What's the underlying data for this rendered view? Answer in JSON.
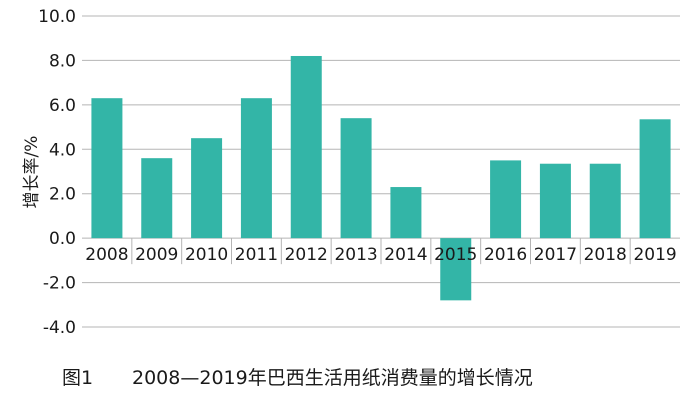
{
  "chart_data": {
    "type": "bar",
    "categories": [
      "2008",
      "2009",
      "2010",
      "2011",
      "2012",
      "2013",
      "2014",
      "2015",
      "2016",
      "2017",
      "2018",
      "2019"
    ],
    "values": [
      6.3,
      3.6,
      4.5,
      6.3,
      8.2,
      5.4,
      2.3,
      -2.8,
      3.5,
      3.35,
      3.35,
      5.35
    ],
    "ylabel": "增长率/%",
    "ylim": [
      -4.0,
      10.0
    ],
    "yticks": [
      -4.0,
      -2.0,
      0.0,
      2.0,
      4.0,
      6.0,
      8.0,
      10.0
    ],
    "ytick_labels": [
      "-4.0",
      "-2.0",
      "0.0",
      "2.0",
      "4.0",
      "6.0",
      "8.0",
      "10.0"
    ],
    "grid": "horizontal gridlines",
    "bar_color": "#33b5a7",
    "grid_color": "#b5b5b5"
  },
  "caption": {
    "number": "图1",
    "title": "2008—2019年巴西生活用纸消费量的增长情况"
  }
}
